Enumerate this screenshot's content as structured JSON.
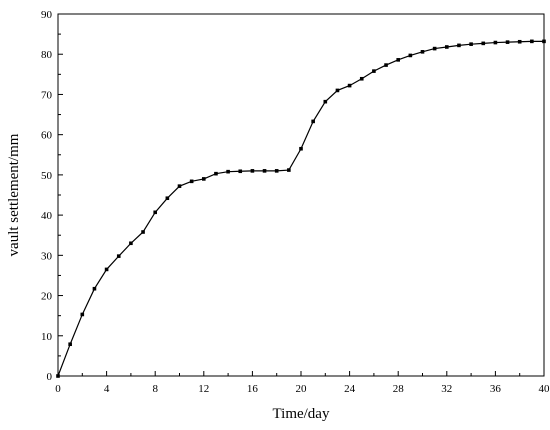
{
  "chart_data": {
    "type": "line",
    "title": "",
    "xlabel": "Time/day",
    "ylabel": "vault settlement/mm",
    "xlim": [
      0,
      40
    ],
    "ylim": [
      0,
      90
    ],
    "x_ticks": [
      0,
      4,
      8,
      12,
      16,
      20,
      24,
      28,
      32,
      36,
      40
    ],
    "y_ticks": [
      0,
      10,
      20,
      30,
      40,
      50,
      60,
      70,
      80,
      90
    ],
    "grid": false,
    "legend": "none",
    "series": [
      {
        "color": "#000000",
        "marker": "square",
        "x": [
          0,
          1,
          2,
          3,
          4,
          5,
          6,
          7,
          8,
          9,
          10,
          11,
          12,
          13,
          14,
          15,
          16,
          17,
          18,
          19,
          20,
          21,
          22,
          23,
          24,
          25,
          26,
          27,
          28,
          29,
          30,
          31,
          32,
          33,
          34,
          35,
          36,
          37,
          38,
          39,
          40
        ],
        "values": [
          0,
          7.9,
          15.3,
          21.7,
          26.5,
          29.8,
          33.0,
          35.8,
          40.7,
          44.2,
          47.2,
          48.4,
          49.0,
          50.3,
          50.8,
          50.9,
          51.0,
          51.0,
          51.0,
          51.2,
          56.5,
          63.3,
          68.2,
          71.0,
          72.2,
          73.9,
          75.8,
          77.3,
          78.6,
          79.7,
          80.6,
          81.4,
          81.8,
          82.2,
          82.5,
          82.7,
          82.9,
          83.0,
          83.1,
          83.2,
          83.2
        ]
      }
    ]
  }
}
